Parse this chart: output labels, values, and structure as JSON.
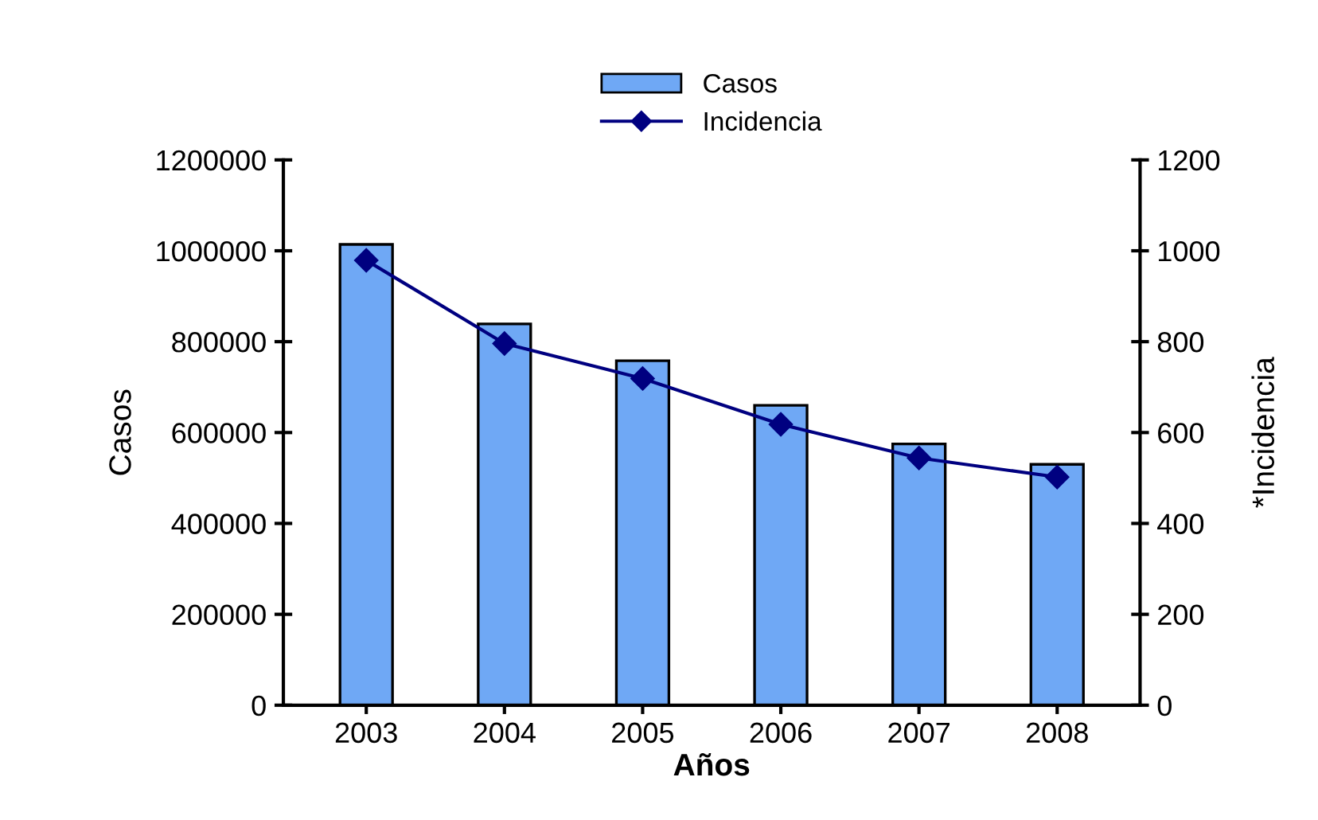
{
  "chart_data": {
    "type": "bar",
    "xlabel": "Años",
    "ylabel": "Casos",
    "y2label": "*Incidencia",
    "categories": [
      "2003",
      "2004",
      "2005",
      "2006",
      "2007",
      "2008"
    ],
    "series": [
      {
        "name": "Casos",
        "color": "#6fa8f5",
        "values": [
          1014000,
          839000,
          758000,
          660000,
          575000,
          530000
        ]
      },
      {
        "name": "Incidencia",
        "type": "line",
        "axis": "y2",
        "color": "#000080",
        "marker": "diamond",
        "values": [
          979,
          796,
          719,
          618,
          544,
          502
        ]
      }
    ],
    "ylim": [
      0,
      1200000
    ],
    "yticks": [
      0,
      200000,
      400000,
      600000,
      800000,
      1000000,
      1200000
    ],
    "y2lim": [
      0,
      1200
    ],
    "y2ticks": [
      0,
      200,
      400,
      600,
      800,
      1000,
      1200
    ],
    "grid": false,
    "legend": "top"
  }
}
